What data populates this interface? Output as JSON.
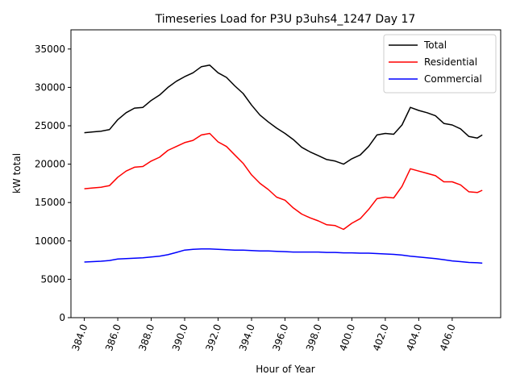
{
  "chart_data": {
    "type": "line",
    "title": "Timeseries Load for P3U p3uhs4_1247  Day 17",
    "xlabel": "Hour of Year",
    "ylabel": "kW total",
    "xlim": [
      383.2,
      408.9
    ],
    "ylim": [
      0,
      37500
    ],
    "x_ticks": [
      384,
      386,
      388,
      390,
      392,
      394,
      396,
      398,
      400,
      402,
      404,
      406
    ],
    "x_tick_labels": [
      "384.0",
      "386.0",
      "388.0",
      "390.0",
      "392.0",
      "394.0",
      "396.0",
      "398.0",
      "400.0",
      "402.0",
      "404.0",
      "406.0"
    ],
    "y_ticks": [
      0,
      5000,
      10000,
      15000,
      20000,
      25000,
      30000,
      35000
    ],
    "y_tick_labels": [
      "0",
      "5000",
      "10000",
      "15000",
      "20000",
      "25000",
      "30000",
      "35000"
    ],
    "legend_position": "top-right",
    "x": [
      384.0,
      384.5,
      385.0,
      385.5,
      386.0,
      386.5,
      387.0,
      387.5,
      388.0,
      388.5,
      389.0,
      389.5,
      390.0,
      390.5,
      391.0,
      391.5,
      392.0,
      392.5,
      393.0,
      393.5,
      394.0,
      394.5,
      395.0,
      395.5,
      396.0,
      396.5,
      397.0,
      397.5,
      398.0,
      398.5,
      399.0,
      399.5,
      400.0,
      400.5,
      401.0,
      401.5,
      402.0,
      402.5,
      403.0,
      403.5,
      404.0,
      404.5,
      405.0,
      405.5,
      406.0,
      406.5,
      407.0,
      407.5,
      407.8
    ],
    "series": [
      {
        "name": "Total",
        "color": "#000000",
        "values": [
          24100,
          24200,
          24300,
          24500,
          25800,
          26700,
          27300,
          27400,
          28300,
          29000,
          30000,
          30800,
          31400,
          31900,
          32700,
          32900,
          31900,
          31300,
          30200,
          29200,
          27700,
          26400,
          25500,
          24700,
          24000,
          23200,
          22200,
          21600,
          21100,
          20600,
          20400,
          20000,
          20700,
          21200,
          22300,
          23800,
          24000,
          23900,
          25100,
          27400,
          27000,
          26700,
          26300,
          25300,
          25100,
          24600,
          23600,
          23400,
          23800
        ]
      },
      {
        "name": "Residential",
        "color": "#ff0000",
        "values": [
          16800,
          16900,
          17000,
          17200,
          18300,
          19100,
          19600,
          19700,
          20400,
          20900,
          21800,
          22300,
          22800,
          23100,
          23800,
          24000,
          22900,
          22300,
          21200,
          20100,
          18600,
          17500,
          16700,
          15700,
          15300,
          14300,
          13500,
          13000,
          12600,
          12100,
          12000,
          11500,
          12300,
          12900,
          14100,
          15500,
          15700,
          15600,
          17100,
          19400,
          19100,
          18800,
          18500,
          17700,
          17700,
          17300,
          16400,
          16300,
          16600
        ]
      },
      {
        "name": "Commercial",
        "color": "#0000ff",
        "values": [
          7250,
          7300,
          7350,
          7450,
          7650,
          7700,
          7750,
          7800,
          7900,
          8000,
          8200,
          8500,
          8800,
          8900,
          8950,
          8950,
          8900,
          8850,
          8800,
          8800,
          8750,
          8700,
          8700,
          8650,
          8600,
          8550,
          8550,
          8550,
          8550,
          8500,
          8500,
          8450,
          8450,
          8400,
          8400,
          8350,
          8300,
          8250,
          8150,
          8000,
          7900,
          7800,
          7700,
          7550,
          7400,
          7300,
          7200,
          7150,
          7100
        ]
      }
    ]
  }
}
